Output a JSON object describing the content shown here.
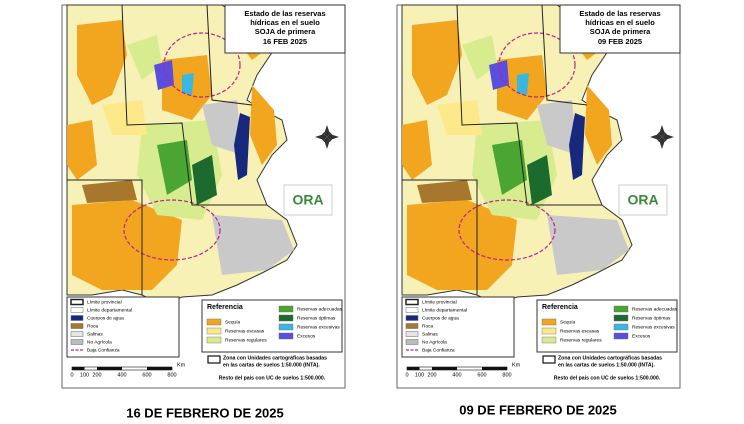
{
  "panels": [
    {
      "title_lines": [
        "Estado de las reservas",
        "hídricas en el suelo",
        "SOJA de primera"
      ],
      "date": "16 FEB 2025",
      "caption": "16 DE FEBRERO DE 2025"
    },
    {
      "title_lines": [
        "Estado de las reservas",
        "hídricas en el suelo",
        "SOJA de primera"
      ],
      "date": "09 FEB 2025",
      "caption": "09 DE FEBRERO DE 2025"
    }
  ],
  "logo": "ORA",
  "legend": {
    "lines": [
      "Límite provincial",
      "Límite departamental",
      "Cuerpos de agua",
      "Roca",
      "Salinas",
      "No Agrícola",
      "Baja Confianza"
    ],
    "reference_title": "Referencia",
    "reference": [
      "Sequía",
      "Reservas escasas",
      "Reservas regulares",
      "Reservas adecuadas",
      "Reservas óptimas",
      "Reservas excesivas",
      "Excesos"
    ],
    "zone_note": [
      "Zona con Unidades cartográficas basadas",
      "en las cartas de suelos 1:50.000 (INTA)."
    ],
    "rest_note": "Resto del país con UC de suelos 1:500.000.",
    "scale": {
      "ticks": [
        "0",
        "100",
        "200",
        "400",
        "600",
        "800"
      ],
      "unit": "Km"
    }
  }
}
